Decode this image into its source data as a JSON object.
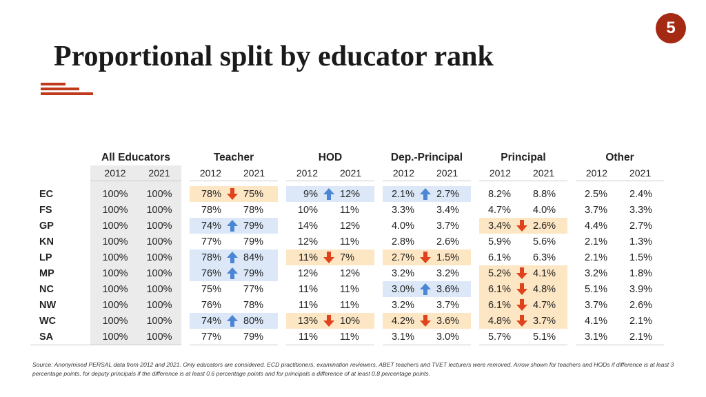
{
  "slide_number": "5",
  "title": "Proportional split by educator rank",
  "colors": {
    "accent": "#a52a14",
    "up_arrow": "#4a86d4",
    "down_arrow": "#e0431b",
    "highlight_blue": "#dce8f7",
    "highlight_orange": "#fde6c4"
  },
  "groups": [
    "All Educators",
    "Teacher",
    "HOD",
    "Dep.-Principal",
    "Principal",
    "Other"
  ],
  "years": [
    "2012",
    "2021"
  ],
  "rows": [
    {
      "prov": "EC",
      "cells": [
        {
          "a": "100%",
          "b": "100%",
          "arrow": "none",
          "hl": "none"
        },
        {
          "a": "78%",
          "b": "75%",
          "arrow": "down",
          "hl": "orange"
        },
        {
          "a": "9%",
          "b": "12%",
          "arrow": "up",
          "hl": "blue"
        },
        {
          "a": "2.1%",
          "b": "2.7%",
          "arrow": "up",
          "hl": "blue"
        },
        {
          "a": "8.2%",
          "b": "8.8%",
          "arrow": "none",
          "hl": "none"
        },
        {
          "a": "2.5%",
          "b": "2.4%",
          "arrow": "none",
          "hl": "none"
        }
      ]
    },
    {
      "prov": "FS",
      "cells": [
        {
          "a": "100%",
          "b": "100%",
          "arrow": "none",
          "hl": "none"
        },
        {
          "a": "78%",
          "b": "78%",
          "arrow": "none",
          "hl": "none"
        },
        {
          "a": "10%",
          "b": "11%",
          "arrow": "none",
          "hl": "none"
        },
        {
          "a": "3.3%",
          "b": "3.4%",
          "arrow": "none",
          "hl": "none"
        },
        {
          "a": "4.7%",
          "b": "4.0%",
          "arrow": "none",
          "hl": "none"
        },
        {
          "a": "3.7%",
          "b": "3.3%",
          "arrow": "none",
          "hl": "none"
        }
      ]
    },
    {
      "prov": "GP",
      "cells": [
        {
          "a": "100%",
          "b": "100%",
          "arrow": "none",
          "hl": "none"
        },
        {
          "a": "74%",
          "b": "79%",
          "arrow": "up",
          "hl": "blue"
        },
        {
          "a": "14%",
          "b": "12%",
          "arrow": "none",
          "hl": "none"
        },
        {
          "a": "4.0%",
          "b": "3.7%",
          "arrow": "none",
          "hl": "none"
        },
        {
          "a": "3.4%",
          "b": "2.6%",
          "arrow": "down",
          "hl": "orange"
        },
        {
          "a": "4.4%",
          "b": "2.7%",
          "arrow": "none",
          "hl": "none"
        }
      ]
    },
    {
      "prov": "KN",
      "cells": [
        {
          "a": "100%",
          "b": "100%",
          "arrow": "none",
          "hl": "none"
        },
        {
          "a": "77%",
          "b": "79%",
          "arrow": "none",
          "hl": "none"
        },
        {
          "a": "12%",
          "b": "11%",
          "arrow": "none",
          "hl": "none"
        },
        {
          "a": "2.8%",
          "b": "2.6%",
          "arrow": "none",
          "hl": "none"
        },
        {
          "a": "5.9%",
          "b": "5.6%",
          "arrow": "none",
          "hl": "none"
        },
        {
          "a": "2.1%",
          "b": "1.3%",
          "arrow": "none",
          "hl": "none"
        }
      ]
    },
    {
      "prov": "LP",
      "cells": [
        {
          "a": "100%",
          "b": "100%",
          "arrow": "none",
          "hl": "none"
        },
        {
          "a": "78%",
          "b": "84%",
          "arrow": "up",
          "hl": "blue"
        },
        {
          "a": "11%",
          "b": "7%",
          "arrow": "down",
          "hl": "orange"
        },
        {
          "a": "2.7%",
          "b": "1.5%",
          "arrow": "down",
          "hl": "orange"
        },
        {
          "a": "6.1%",
          "b": "6.3%",
          "arrow": "none",
          "hl": "none"
        },
        {
          "a": "2.1%",
          "b": "1.5%",
          "arrow": "none",
          "hl": "none"
        }
      ]
    },
    {
      "prov": "MP",
      "cells": [
        {
          "a": "100%",
          "b": "100%",
          "arrow": "none",
          "hl": "none"
        },
        {
          "a": "76%",
          "b": "79%",
          "arrow": "up",
          "hl": "blue"
        },
        {
          "a": "12%",
          "b": "12%",
          "arrow": "none",
          "hl": "none"
        },
        {
          "a": "3.2%",
          "b": "3.2%",
          "arrow": "none",
          "hl": "none"
        },
        {
          "a": "5.2%",
          "b": "4.1%",
          "arrow": "down",
          "hl": "orange"
        },
        {
          "a": "3.2%",
          "b": "1.8%",
          "arrow": "none",
          "hl": "none"
        }
      ]
    },
    {
      "prov": "NC",
      "cells": [
        {
          "a": "100%",
          "b": "100%",
          "arrow": "none",
          "hl": "none"
        },
        {
          "a": "75%",
          "b": "77%",
          "arrow": "none",
          "hl": "none"
        },
        {
          "a": "11%",
          "b": "11%",
          "arrow": "none",
          "hl": "none"
        },
        {
          "a": "3.0%",
          "b": "3.6%",
          "arrow": "up",
          "hl": "blue"
        },
        {
          "a": "6.1%",
          "b": "4.8%",
          "arrow": "down",
          "hl": "orange"
        },
        {
          "a": "5.1%",
          "b": "3.9%",
          "arrow": "none",
          "hl": "none"
        }
      ]
    },
    {
      "prov": "NW",
      "cells": [
        {
          "a": "100%",
          "b": "100%",
          "arrow": "none",
          "hl": "none"
        },
        {
          "a": "76%",
          "b": "78%",
          "arrow": "none",
          "hl": "none"
        },
        {
          "a": "11%",
          "b": "11%",
          "arrow": "none",
          "hl": "none"
        },
        {
          "a": "3.2%",
          "b": "3.7%",
          "arrow": "none",
          "hl": "none"
        },
        {
          "a": "6.1%",
          "b": "4.7%",
          "arrow": "down",
          "hl": "orange"
        },
        {
          "a": "3.7%",
          "b": "2.6%",
          "arrow": "none",
          "hl": "none"
        }
      ]
    },
    {
      "prov": "WC",
      "cells": [
        {
          "a": "100%",
          "b": "100%",
          "arrow": "none",
          "hl": "none"
        },
        {
          "a": "74%",
          "b": "80%",
          "arrow": "up",
          "hl": "blue"
        },
        {
          "a": "13%",
          "b": "10%",
          "arrow": "down",
          "hl": "orange"
        },
        {
          "a": "4.2%",
          "b": "3.6%",
          "arrow": "down",
          "hl": "orange"
        },
        {
          "a": "4.8%",
          "b": "3.7%",
          "arrow": "down",
          "hl": "orange"
        },
        {
          "a": "4.1%",
          "b": "2.1%",
          "arrow": "none",
          "hl": "none"
        }
      ]
    },
    {
      "prov": "SA",
      "cells": [
        {
          "a": "100%",
          "b": "100%",
          "arrow": "none",
          "hl": "none"
        },
        {
          "a": "77%",
          "b": "79%",
          "arrow": "none",
          "hl": "none"
        },
        {
          "a": "11%",
          "b": "11%",
          "arrow": "none",
          "hl": "none"
        },
        {
          "a": "3.1%",
          "b": "3.0%",
          "arrow": "none",
          "hl": "none"
        },
        {
          "a": "5.7%",
          "b": "5.1%",
          "arrow": "none",
          "hl": "none"
        },
        {
          "a": "3.1%",
          "b": "2.1%",
          "arrow": "none",
          "hl": "none"
        }
      ]
    }
  ],
  "source": "Source: Anonymised PERSAL data from 2012 and 2021. Only educators are considered. ECD practitioners, examination reviewers, ABET teachers and TVET lecturers were removed. Arrow shown for teachers and HODs if difference is at least 3 percentage points, for deputy principals if the difference is at least 0.6 percentage points and for principals a difference of at least 0.8 percentage points."
}
